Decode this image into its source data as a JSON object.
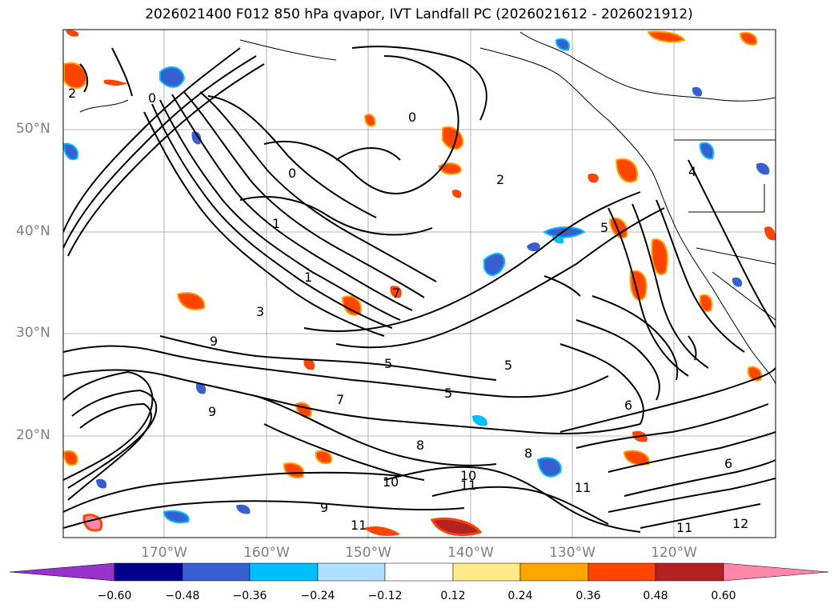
{
  "title": "2026021400 F012 850 hPa qvapor, IVT Landfall PC (2026021612 - 2026021912)",
  "lat_labels": [
    "50°N",
    "40°N",
    "30°N",
    "20°N"
  ],
  "lon_labels": [
    "170°W",
    "160°W",
    "150°W",
    "140°W",
    "130°W",
    "120°W"
  ],
  "colorbar": {
    "ticks": [
      "−0.60",
      "−0.48",
      "−0.36",
      "−0.24",
      "−0.12",
      "0.12",
      "0.24",
      "0.36",
      "0.48",
      "0.60"
    ],
    "colors": [
      "#9932cc",
      "#00008b",
      "#3660cf",
      "#00bfff",
      "#addfff",
      "#ffffff",
      "#ffe98a",
      "#ffa500",
      "#ff4500",
      "#b22222",
      "#ff88aa"
    ]
  },
  "contour_labels": [
    "0",
    "0",
    "0",
    "1",
    "1",
    "2",
    "2",
    "3",
    "4",
    "5",
    "5",
    "5",
    "5",
    "6",
    "6",
    "7",
    "7",
    "8",
    "8",
    "9",
    "9",
    "9",
    "10",
    "10",
    "11",
    "11",
    "11",
    "11",
    "12"
  ],
  "shading_colors": {
    "pos_low": "#ffe98a",
    "pos_mid": "#ffa500",
    "pos_high": "#ff4500",
    "pos_max": "#b22222",
    "neg_low": "#addfff",
    "neg_mid": "#00bfff",
    "neg_high": "#3660cf"
  }
}
